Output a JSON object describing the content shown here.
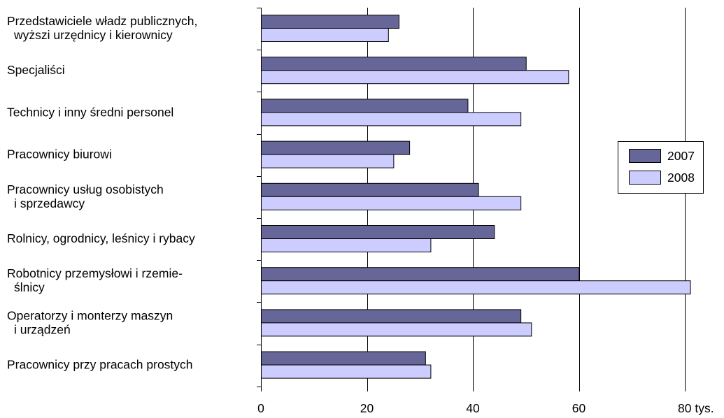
{
  "chart_data": {
    "type": "bar",
    "orientation": "horizontal",
    "categories": [
      [
        "Przedstawiciele władz publicznych,",
        "wyższi urzędnicy i kierownicy"
      ],
      [
        "Specjaliści"
      ],
      [
        "Technicy i inny średni personel"
      ],
      [
        "Pracownicy biurowi"
      ],
      [
        "Pracownicy usług osobistych",
        "i sprzedawcy"
      ],
      [
        "Rolnicy, ogrodnicy, leśnicy i rybacy"
      ],
      [
        "Robotnicy przemysłowi i rzemie-",
        "ślnicy"
      ],
      [
        "Operatorzy i monterzy maszyn",
        "i urządzeń"
      ],
      [
        "Pracownicy przy pracach prostych"
      ]
    ],
    "series": [
      {
        "name": "2007",
        "color": "#666699",
        "values": [
          26,
          50,
          39,
          28,
          41,
          44,
          60,
          49,
          31
        ]
      },
      {
        "name": "2008",
        "color": "#ccccff",
        "values": [
          24,
          58,
          49,
          25,
          49,
          32,
          81,
          51,
          32
        ]
      }
    ],
    "xlim": [
      0,
      80
    ],
    "xticks": [
      0,
      20,
      40,
      60,
      80
    ],
    "xtick_labels": [
      "0",
      "20",
      "40",
      "60",
      "80 tys."
    ],
    "grid": "vertical",
    "legend_position": "right"
  }
}
